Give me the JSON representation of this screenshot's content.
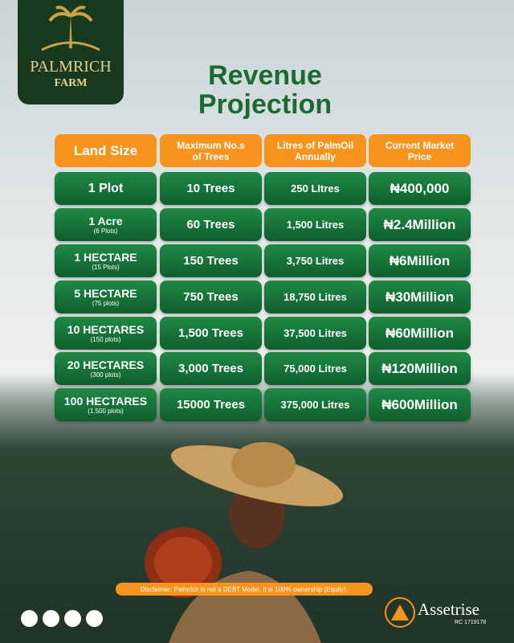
{
  "logo": {
    "name": "PALMRICH",
    "sub": "FARM"
  },
  "title": {
    "line1": "Revenue",
    "line2": "Projection"
  },
  "table": {
    "header": [
      "Land Size",
      "Maximum No.s of Trees",
      "Litres of PalmOil Annually",
      "Current Market Price"
    ],
    "rows": [
      {
        "land": "1 Plot",
        "trees": "10 Trees",
        "litres": "250 LItres",
        "price": "₦400,000"
      },
      {
        "land": "1 Acre",
        "plots": "(6 Plots)",
        "trees": "60 Trees",
        "litres": "1,500 Litres",
        "price": "₦2.4Million"
      },
      {
        "land": "1 HECTARE",
        "plots": "(15 Plots)",
        "trees": "150 Trees",
        "litres": "3,750 Litres",
        "price": "₦6Million"
      },
      {
        "land": "5 HECTARE",
        "plots": "(75 plots)",
        "trees": "750 Trees",
        "litres": "18,750 Litres",
        "price": "₦30Million"
      },
      {
        "land": "10 HECTARES",
        "plots": "(150 plots)",
        "trees": "1,500 Trees",
        "litres": "37,500 Litres",
        "price": "₦60Million"
      },
      {
        "land": "20 HECTARES",
        "plots": "(300 plots)",
        "trees": "3,000 Trees",
        "litres": "75,000 Litres",
        "price": "₦120Million"
      },
      {
        "land": "100 HECTARES",
        "plots": "(1,500 plots)",
        "trees": "15000 Trees",
        "litres": "375,000 Litres",
        "price": "₦600Million"
      }
    ]
  },
  "disclaimer": "Disclaimer: Palmrich is not a DEBT Model. It is 100% ownership (Equity).",
  "brand": {
    "name": "Assetrise",
    "rc": "RC 1719178"
  }
}
